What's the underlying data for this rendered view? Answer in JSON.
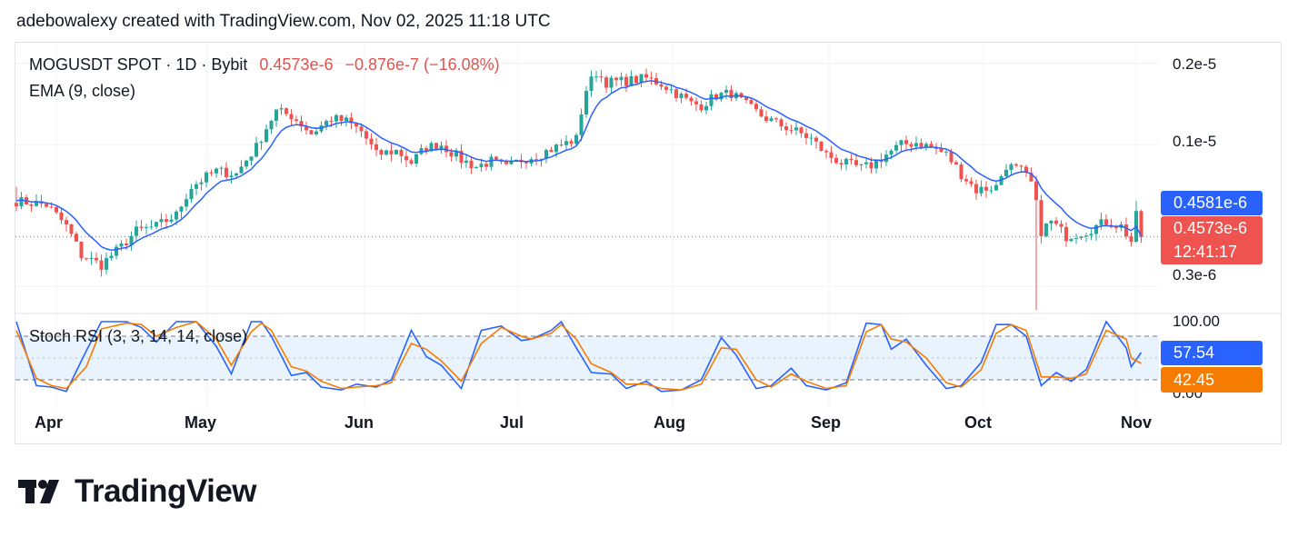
{
  "header": "adebowalexy created with TradingView.com, Nov 02, 2025 11:18 UTC",
  "legend": {
    "symbol": "MOGUSDT SPOT · 1D · Bybit",
    "price": "0.4573e-6",
    "change": "−0.876e-7 (−16.08%)",
    "ema": "EMA (9, close)",
    "stoch": "Stoch RSI (3, 3, 14, 14, close)"
  },
  "price_axis": {
    "l1": "0.2e-5",
    "l2": "0.1e-5",
    "l3": "0.3e-6"
  },
  "tags": {
    "ema": "0.4581e-6",
    "price": "0.4573e-6",
    "countdown": "12:41:17"
  },
  "stoch_axis": {
    "top": "100.00",
    "bottom": "0.00",
    "k": "57.54",
    "d": "42.45"
  },
  "xaxis": [
    "Apr",
    "May",
    "Jun",
    "Jul",
    "Aug",
    "Sep",
    "Oct",
    "Nov"
  ],
  "brand": "TradingView",
  "colors": {
    "up": "#26a69a",
    "down": "#ef5350",
    "ema": "#2962ff",
    "k": "#2962ff",
    "d": "#f57c00",
    "band": "#e8f3fd"
  },
  "chart_data": [
    {
      "type": "candlestick",
      "title": "MOGUSDT SPOT · 1D · Bybit",
      "unit": "e-6",
      "ylim": [
        0.24,
        2.4
      ],
      "ytick_values": [
        0.3,
        1.0,
        2.0
      ],
      "date_start": "2025-03-22",
      "date_end": "2025-11-02",
      "overlay": "EMA (9, close)",
      "ema_last": 0.4581,
      "close_path": [
        [
          0,
          0.62
        ],
        [
          6,
          0.6
        ],
        [
          10,
          0.5
        ],
        [
          13,
          0.39
        ],
        [
          17,
          0.36
        ],
        [
          21,
          0.42
        ],
        [
          24,
          0.48
        ],
        [
          28,
          0.5
        ],
        [
          32,
          0.55
        ],
        [
          35,
          0.7
        ],
        [
          40,
          0.8
        ],
        [
          44,
          0.78
        ],
        [
          48,
          0.98
        ],
        [
          52,
          1.33
        ],
        [
          55,
          1.28
        ],
        [
          59,
          1.1
        ],
        [
          63,
          1.25
        ],
        [
          66,
          1.22
        ],
        [
          69,
          1.12
        ],
        [
          72,
          0.92
        ],
        [
          76,
          0.95
        ],
        [
          79,
          0.86
        ],
        [
          82,
          0.98
        ],
        [
          85,
          1.0
        ],
        [
          89,
          0.88
        ],
        [
          92,
          0.83
        ],
        [
          95,
          0.87
        ],
        [
          98,
          0.82
        ],
        [
          101,
          0.88
        ],
        [
          105,
          0.93
        ],
        [
          108,
          0.98
        ],
        [
          112,
          1.05
        ],
        [
          114,
          1.6
        ],
        [
          116,
          1.85
        ],
        [
          118,
          1.7
        ],
        [
          122,
          1.72
        ],
        [
          126,
          1.76
        ],
        [
          129,
          1.68
        ],
        [
          132,
          1.55
        ],
        [
          135,
          1.42
        ],
        [
          137,
          1.4
        ],
        [
          140,
          1.52
        ],
        [
          143,
          1.55
        ],
        [
          146,
          1.4
        ],
        [
          149,
          1.28
        ],
        [
          152,
          1.2
        ],
        [
          156,
          1.12
        ],
        [
          159,
          1.05
        ],
        [
          162,
          0.92
        ],
        [
          165,
          0.86
        ],
        [
          169,
          0.82
        ],
        [
          171,
          0.84
        ],
        [
          174,
          0.92
        ],
        [
          177,
          1.0
        ],
        [
          180,
          1.02
        ],
        [
          183,
          0.98
        ],
        [
          186,
          0.92
        ],
        [
          189,
          0.78
        ],
        [
          192,
          0.68
        ],
        [
          196,
          0.7
        ],
        [
          198,
          0.84
        ],
        [
          201,
          0.8
        ],
        [
          203,
          0.72
        ],
        [
          205,
          0.48
        ],
        [
          207,
          0.52
        ],
        [
          210,
          0.46
        ],
        [
          214,
          0.48
        ],
        [
          218,
          0.52
        ],
        [
          221,
          0.5
        ],
        [
          223,
          0.44
        ],
        [
          224,
          0.545
        ],
        [
          225,
          0.4573
        ]
      ]
    },
    {
      "type": "line",
      "title": "Stoch RSI (3, 3, 14, 14, close)",
      "ylim": [
        0,
        100
      ],
      "bands": [
        20,
        80
      ],
      "series": [
        {
          "name": "K",
          "last": 57.54,
          "points": [
            [
              0,
              100
            ],
            [
              4,
              12
            ],
            [
              7,
              10
            ],
            [
              10,
              4
            ],
            [
              14,
              60
            ],
            [
              17,
              100
            ],
            [
              22,
              100
            ],
            [
              25,
              92
            ],
            [
              28,
              72
            ],
            [
              32,
              100
            ],
            [
              36,
              100
            ],
            [
              40,
              66
            ],
            [
              43,
              28
            ],
            [
              47,
              100
            ],
            [
              49,
              100
            ],
            [
              51,
              80
            ],
            [
              55,
              26
            ],
            [
              58,
              30
            ],
            [
              61,
              10
            ],
            [
              65,
              6
            ],
            [
              68,
              14
            ],
            [
              72,
              10
            ],
            [
              75,
              20
            ],
            [
              79,
              88
            ],
            [
              82,
              52
            ],
            [
              85,
              40
            ],
            [
              89,
              8
            ],
            [
              93,
              88
            ],
            [
              97,
              94
            ],
            [
              101,
              74
            ],
            [
              103,
              76
            ],
            [
              107,
              88
            ],
            [
              109,
              100
            ],
            [
              112,
              64
            ],
            [
              115,
              30
            ],
            [
              119,
              28
            ],
            [
              122,
              8
            ],
            [
              126,
              18
            ],
            [
              129,
              4
            ],
            [
              133,
              6
            ],
            [
              137,
              20
            ],
            [
              141,
              78
            ],
            [
              144,
              54
            ],
            [
              148,
              8
            ],
            [
              151,
              12
            ],
            [
              155,
              36
            ],
            [
              158,
              12
            ],
            [
              162,
              6
            ],
            [
              166,
              16
            ],
            [
              170,
              98
            ],
            [
              173,
              96
            ],
            [
              175,
              62
            ],
            [
              178,
              76
            ],
            [
              182,
              40
            ],
            [
              186,
              8
            ],
            [
              189,
              12
            ],
            [
              193,
              44
            ],
            [
              196,
              96
            ],
            [
              199,
              96
            ],
            [
              202,
              80
            ],
            [
              205,
              12
            ],
            [
              208,
              30
            ],
            [
              211,
              18
            ],
            [
              214,
              34
            ],
            [
              218,
              100
            ],
            [
              222,
              64
            ],
            [
              223,
              38
            ],
            [
              225,
              57.54
            ]
          ]
        },
        {
          "name": "D",
          "last": 42.45,
          "points": [
            [
              0,
              88
            ],
            [
              4,
              22
            ],
            [
              7,
              12
            ],
            [
              10,
              8
            ],
            [
              14,
              38
            ],
            [
              17,
              90
            ],
            [
              22,
              98
            ],
            [
              25,
              96
            ],
            [
              28,
              80
            ],
            [
              32,
              92
            ],
            [
              36,
              100
            ],
            [
              40,
              76
            ],
            [
              43,
              40
            ],
            [
              47,
              86
            ],
            [
              49,
              98
            ],
            [
              51,
              88
            ],
            [
              55,
              38
            ],
            [
              58,
              32
            ],
            [
              61,
              18
            ],
            [
              65,
              8
            ],
            [
              68,
              10
            ],
            [
              72,
              12
            ],
            [
              75,
              16
            ],
            [
              79,
              70
            ],
            [
              82,
              62
            ],
            [
              85,
              46
            ],
            [
              89,
              18
            ],
            [
              93,
              70
            ],
            [
              97,
              92
            ],
            [
              101,
              80
            ],
            [
              103,
              76
            ],
            [
              107,
              84
            ],
            [
              109,
              96
            ],
            [
              112,
              76
            ],
            [
              115,
              42
            ],
            [
              119,
              30
            ],
            [
              122,
              14
            ],
            [
              126,
              14
            ],
            [
              129,
              8
            ],
            [
              133,
              6
            ],
            [
              137,
              14
            ],
            [
              141,
              64
            ],
            [
              144,
              62
            ],
            [
              148,
              20
            ],
            [
              151,
              10
            ],
            [
              155,
              28
            ],
            [
              158,
              18
            ],
            [
              162,
              8
            ],
            [
              166,
              12
            ],
            [
              170,
              86
            ],
            [
              173,
              96
            ],
            [
              175,
              76
            ],
            [
              178,
              72
            ],
            [
              182,
              50
            ],
            [
              186,
              16
            ],
            [
              189,
              10
            ],
            [
              193,
              34
            ],
            [
              196,
              84
            ],
            [
              199,
              96
            ],
            [
              202,
              88
            ],
            [
              205,
              24
            ],
            [
              208,
              24
            ],
            [
              211,
              22
            ],
            [
              214,
              28
            ],
            [
              218,
              88
            ],
            [
              222,
              76
            ],
            [
              223,
              50
            ],
            [
              225,
              42.45
            ]
          ]
        }
      ]
    }
  ]
}
